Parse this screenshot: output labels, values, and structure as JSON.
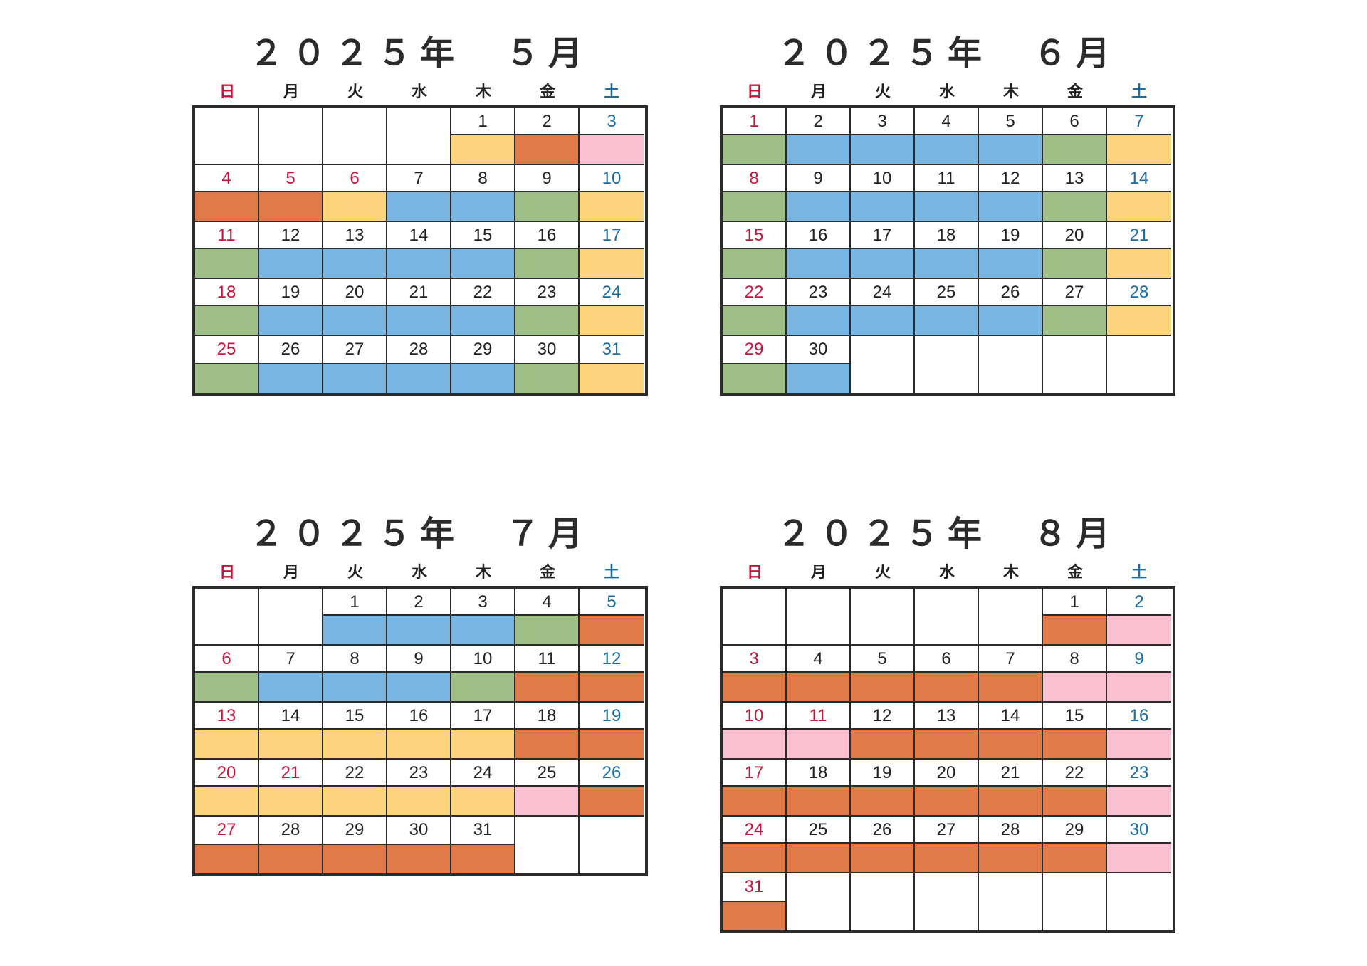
{
  "weekdays": [
    "日",
    "月",
    "火",
    "水",
    "木",
    "金",
    "土"
  ],
  "palette": {
    "B": "#7ab6e2",
    "G": "#9fbf88",
    "Y": "#fdd47c",
    "O": "#e07a48",
    "P": "#f9c1d1",
    "W": "#ffffff"
  },
  "text_colors": {
    "sunday": "#c8143c",
    "saturday": "#1a6da3",
    "weekday": "#222222"
  },
  "months": [
    {
      "title": "２０２５年　５月",
      "first_weekday": 4,
      "days": 31,
      "holidays": [
        3,
        4,
        5,
        6
      ],
      "colors": [
        "Y",
        "O",
        "P",
        "O",
        "O",
        "Y",
        "B",
        "B",
        "G",
        "Y",
        "G",
        "B",
        "B",
        "B",
        "B",
        "G",
        "Y",
        "G",
        "B",
        "B",
        "B",
        "B",
        "G",
        "Y",
        "G",
        "B",
        "B",
        "B",
        "B",
        "G",
        "Y"
      ]
    },
    {
      "title": "２０２５年　６月",
      "first_weekday": 0,
      "days": 30,
      "holidays": [],
      "colors": [
        "G",
        "B",
        "B",
        "B",
        "B",
        "G",
        "Y",
        "G",
        "B",
        "B",
        "B",
        "B",
        "G",
        "Y",
        "G",
        "B",
        "B",
        "B",
        "B",
        "G",
        "Y",
        "G",
        "B",
        "B",
        "B",
        "B",
        "G",
        "Y",
        "G",
        "B"
      ]
    },
    {
      "title": "２０２５年　７月",
      "first_weekday": 2,
      "days": 31,
      "holidays": [
        21
      ],
      "colors": [
        "B",
        "B",
        "B",
        "G",
        "O",
        "G",
        "B",
        "B",
        "B",
        "G",
        "O",
        "O",
        "Y",
        "Y",
        "Y",
        "Y",
        "Y",
        "O",
        "O",
        "Y",
        "Y",
        "Y",
        "Y",
        "Y",
        "P",
        "O",
        "O",
        "O",
        "O",
        "O",
        "O"
      ]
    },
    {
      "title": "２０２５年　８月",
      "first_weekday": 5,
      "days": 31,
      "holidays": [
        11
      ],
      "colors": [
        "O",
        "P",
        "O",
        "O",
        "O",
        "O",
        "O",
        "P",
        "P",
        "P",
        "P",
        "O",
        "O",
        "O",
        "O",
        "P",
        "O",
        "O",
        "O",
        "O",
        "O",
        "O",
        "P",
        "O",
        "O",
        "O",
        "O",
        "O",
        "O",
        "P",
        "O"
      ]
    }
  ]
}
